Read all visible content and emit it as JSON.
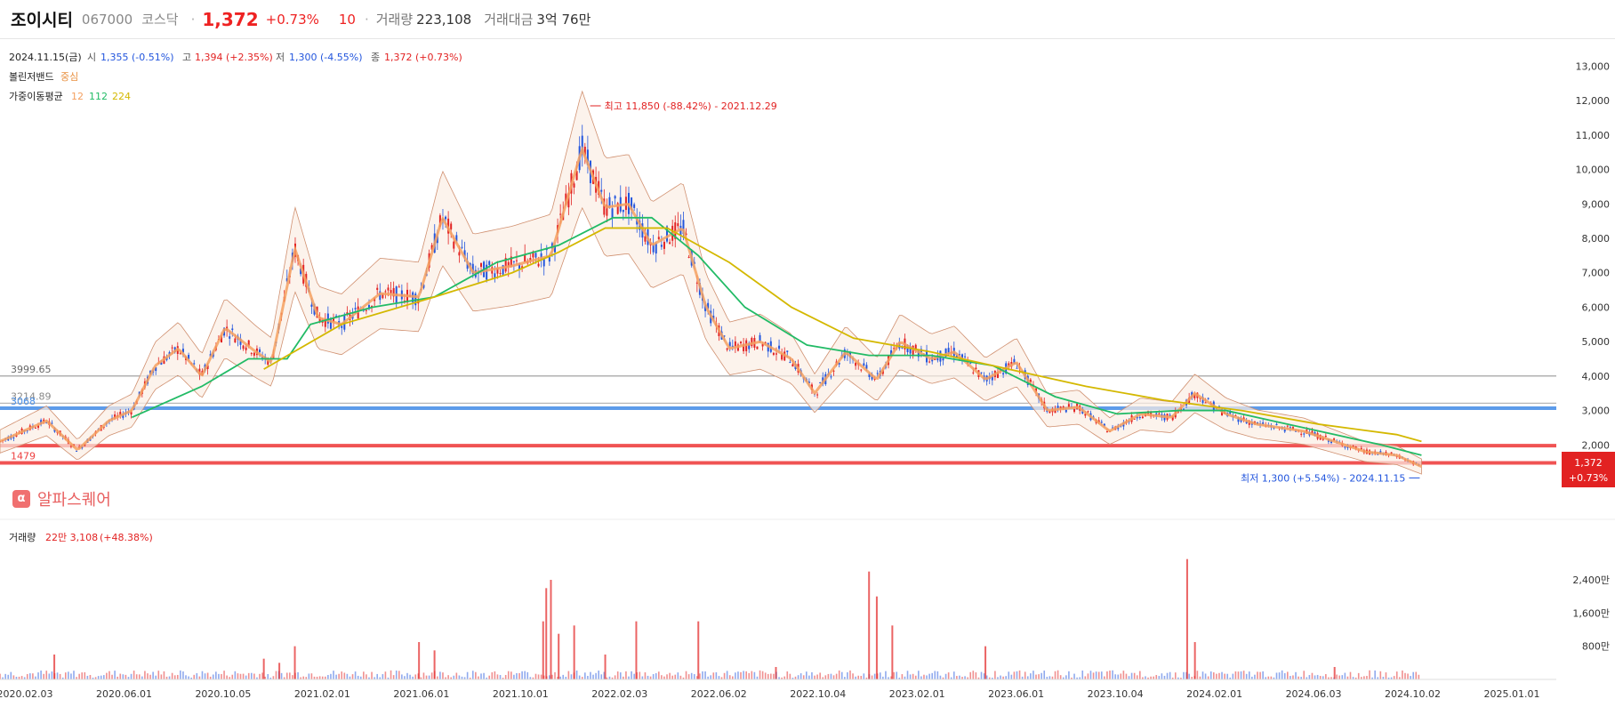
{
  "header": {
    "name": "조이시티",
    "code": "067000",
    "market": "코스닥",
    "price": "1,372",
    "change_pct": "+0.73%",
    "change_abs": "10",
    "volume_label": "거래량",
    "volume": "223,108",
    "amount_label": "거래대금",
    "amount": "3억 76만"
  },
  "info": {
    "date": "2024.11.15(금)",
    "open_label": "시",
    "open": "1,355 (-0.51%)",
    "high_label": "고",
    "high": "1,394 (+2.35%)",
    "low_label": "저",
    "low": "1,300 (-4.55%)",
    "close_label": "종",
    "close": "1,372 (+0.73%)",
    "bb_label": "볼린저밴드",
    "bb_value": "중심",
    "wma_label": "가중이동평균",
    "wma_12": "12",
    "wma_112": "112",
    "wma_224": "224"
  },
  "annotations": {
    "max": "최고 11,850 (-88.42%) - 2021.12.29",
    "min": "최저 1,300 (+5.54%) - 2024.11.15",
    "last_price": "1,372",
    "last_change": "+0.73%"
  },
  "alpha": {
    "icon": "α",
    "label": "알파스퀘어"
  },
  "volume_info": {
    "label": "거래량",
    "value": "22만 3,108",
    "change": "(+48.38%)"
  },
  "colors": {
    "up": "#e22222",
    "down": "#2255dd",
    "wma12": "#f4a060",
    "wma112": "#22bb66",
    "wma224": "#d4b800",
    "bb": "#d09070",
    "blue_line": "#4a90e8",
    "red_line": "#ee4040"
  },
  "chart_data": {
    "type": "candlestick",
    "y_ticks": [
      "13,000",
      "12,000",
      "11,000",
      "10,000",
      "9,000",
      "8,000",
      "7,000",
      "6,000",
      "5,000",
      "4,000",
      "3,000",
      "2,000"
    ],
    "ylim": [
      1000,
      13400
    ],
    "x_ticks": [
      "2020.02.03",
      "2020.06.01",
      "2020.10.05",
      "2021.02.01",
      "2021.06.01",
      "2021.10.01",
      "2022.02.03",
      "2022.06.02",
      "2022.10.04",
      "2023.02.01",
      "2023.06.01",
      "2023.10.04",
      "2024.02.01",
      "2024.06.03",
      "2024.10.02",
      "2025.01.01"
    ],
    "horizontal_lines": [
      {
        "label": "3999.65",
        "value": 3999.65,
        "color": "#666666"
      },
      {
        "label": "3214.89",
        "value": 3214.89,
        "color": "#888888"
      },
      {
        "label": "3068",
        "value": 3068,
        "color": "#4a90e8"
      },
      {
        "label": "",
        "value": 1980,
        "color": "#ee4040"
      },
      {
        "label": "1479",
        "value": 1479,
        "color": "#ee4040"
      }
    ],
    "price_trend": [
      [
        0,
        2100
      ],
      [
        0.03,
        2700
      ],
      [
        0.05,
        1850
      ],
      [
        0.07,
        2700
      ],
      [
        0.085,
        3000
      ],
      [
        0.1,
        4300
      ],
      [
        0.115,
        4800
      ],
      [
        0.13,
        4000
      ],
      [
        0.145,
        5400
      ],
      [
        0.165,
        4700
      ],
      [
        0.175,
        4400
      ],
      [
        0.19,
        7700
      ],
      [
        0.205,
        5700
      ],
      [
        0.22,
        5500
      ],
      [
        0.245,
        6400
      ],
      [
        0.27,
        6300
      ],
      [
        0.285,
        8600
      ],
      [
        0.305,
        7000
      ],
      [
        0.33,
        7200
      ],
      [
        0.355,
        7500
      ],
      [
        0.375,
        10600
      ],
      [
        0.39,
        8900
      ],
      [
        0.405,
        9000
      ],
      [
        0.42,
        7800
      ],
      [
        0.44,
        8300
      ],
      [
        0.455,
        6000
      ],
      [
        0.47,
        4800
      ],
      [
        0.49,
        5000
      ],
      [
        0.51,
        4500
      ],
      [
        0.525,
        3500
      ],
      [
        0.545,
        4700
      ],
      [
        0.565,
        3900
      ],
      [
        0.58,
        5000
      ],
      [
        0.6,
        4500
      ],
      [
        0.615,
        4700
      ],
      [
        0.635,
        3900
      ],
      [
        0.655,
        4400
      ],
      [
        0.675,
        3000
      ],
      [
        0.695,
        3100
      ],
      [
        0.715,
        2400
      ],
      [
        0.735,
        2900
      ],
      [
        0.755,
        2800
      ],
      [
        0.77,
        3500
      ],
      [
        0.79,
        2900
      ],
      [
        0.81,
        2600
      ],
      [
        0.84,
        2400
      ],
      [
        0.86,
        2100
      ],
      [
        0.88,
        1800
      ],
      [
        0.9,
        1700
      ],
      [
        0.916,
        1372
      ]
    ],
    "wma112": [
      [
        0.085,
        2800
      ],
      [
        0.13,
        3700
      ],
      [
        0.16,
        4500
      ],
      [
        0.185,
        4500
      ],
      [
        0.2,
        5500
      ],
      [
        0.24,
        6000
      ],
      [
        0.28,
        6300
      ],
      [
        0.32,
        7300
      ],
      [
        0.36,
        7800
      ],
      [
        0.395,
        8600
      ],
      [
        0.42,
        8600
      ],
      [
        0.45,
        7500
      ],
      [
        0.48,
        6000
      ],
      [
        0.52,
        4900
      ],
      [
        0.56,
        4600
      ],
      [
        0.6,
        4600
      ],
      [
        0.64,
        4300
      ],
      [
        0.68,
        3400
      ],
      [
        0.72,
        2900
      ],
      [
        0.76,
        3000
      ],
      [
        0.79,
        3000
      ],
      [
        0.82,
        2700
      ],
      [
        0.86,
        2300
      ],
      [
        0.89,
        2000
      ],
      [
        0.916,
        1700
      ]
    ],
    "wma224": [
      [
        0.17,
        4200
      ],
      [
        0.22,
        5500
      ],
      [
        0.28,
        6300
      ],
      [
        0.33,
        7000
      ],
      [
        0.36,
        7600
      ],
      [
        0.39,
        8300
      ],
      [
        0.43,
        8300
      ],
      [
        0.47,
        7300
      ],
      [
        0.51,
        6000
      ],
      [
        0.55,
        5100
      ],
      [
        0.6,
        4700
      ],
      [
        0.65,
        4200
      ],
      [
        0.7,
        3700
      ],
      [
        0.75,
        3300
      ],
      [
        0.8,
        3000
      ],
      [
        0.85,
        2600
      ],
      [
        0.9,
        2300
      ],
      [
        0.916,
        2100
      ]
    ],
    "max_point": {
      "x": 0.378,
      "y": 11850
    },
    "min_point": {
      "x": 0.916,
      "y": 1300
    },
    "volume_ticks": [
      "2,400만",
      "1,600만",
      "800만"
    ],
    "volume_ylim": [
      0,
      30000000
    ],
    "volume_spikes": [
      [
        0.035,
        6000000
      ],
      [
        0.17,
        5000000
      ],
      [
        0.18,
        4000000
      ],
      [
        0.19,
        8000000
      ],
      [
        0.27,
        9000000
      ],
      [
        0.28,
        7000000
      ],
      [
        0.35,
        14000000
      ],
      [
        0.352,
        22000000
      ],
      [
        0.355,
        24000000
      ],
      [
        0.36,
        11000000
      ],
      [
        0.37,
        13000000
      ],
      [
        0.39,
        6000000
      ],
      [
        0.41,
        14000000
      ],
      [
        0.45,
        14000000
      ],
      [
        0.5,
        3000000
      ],
      [
        0.56,
        26000000
      ],
      [
        0.565,
        20000000
      ],
      [
        0.575,
        13000000
      ],
      [
        0.635,
        8000000
      ],
      [
        0.765,
        29000000
      ],
      [
        0.77,
        9000000
      ],
      [
        0.86,
        3000000
      ]
    ]
  }
}
